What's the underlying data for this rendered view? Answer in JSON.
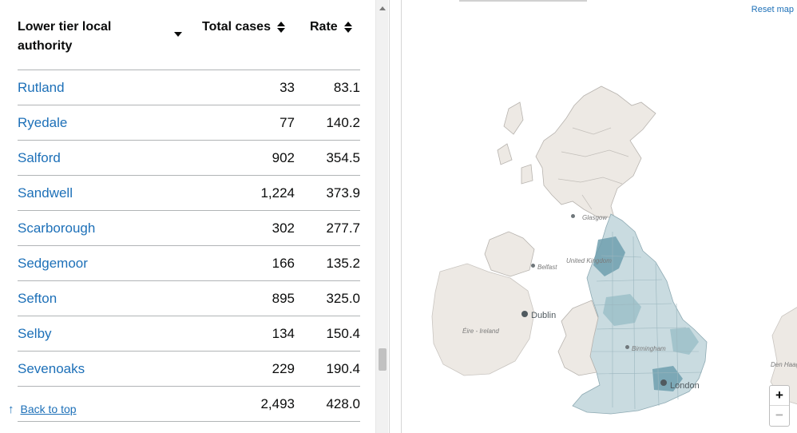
{
  "table": {
    "headers": {
      "authority": "Lower tier local authority",
      "cases": "Total cases",
      "rate": "Rate"
    },
    "rows": [
      {
        "name": "Rutland",
        "cases": "33",
        "rate": "83.1"
      },
      {
        "name": "Ryedale",
        "cases": "77",
        "rate": "140.2"
      },
      {
        "name": "Salford",
        "cases": "902",
        "rate": "354.5"
      },
      {
        "name": "Sandwell",
        "cases": "1,224",
        "rate": "373.9"
      },
      {
        "name": "Scarborough",
        "cases": "302",
        "rate": "277.7"
      },
      {
        "name": "Sedgemoor",
        "cases": "166",
        "rate": "135.2"
      },
      {
        "name": "Sefton",
        "cases": "895",
        "rate": "325.0"
      },
      {
        "name": "Selby",
        "cases": "134",
        "rate": "150.4"
      },
      {
        "name": "Sevenoaks",
        "cases": "229",
        "rate": "190.4"
      },
      {
        "name": "",
        "cases": "2,493",
        "rate": "428.0"
      }
    ],
    "back_to_top": "Back to top",
    "back_icon": "arrow-up-icon"
  },
  "map": {
    "reset_label": "Reset map",
    "zoom_in": "+",
    "zoom_out": "−",
    "labels": {
      "dublin": "Dublin",
      "london": "London",
      "glasgow": "Glasgow",
      "belfast": "Belfast",
      "eire": "Éire - Ireland",
      "birmingham": "Birmingham",
      "united_kingdom": "United Kingdom",
      "den_haag": "Den Haag"
    },
    "colors": {
      "land": "#ede9e4",
      "water": "#ffffff",
      "england_low": "#c9dbe0",
      "england_mid": "#9fc1ca",
      "england_high": "#6f9fae"
    }
  }
}
